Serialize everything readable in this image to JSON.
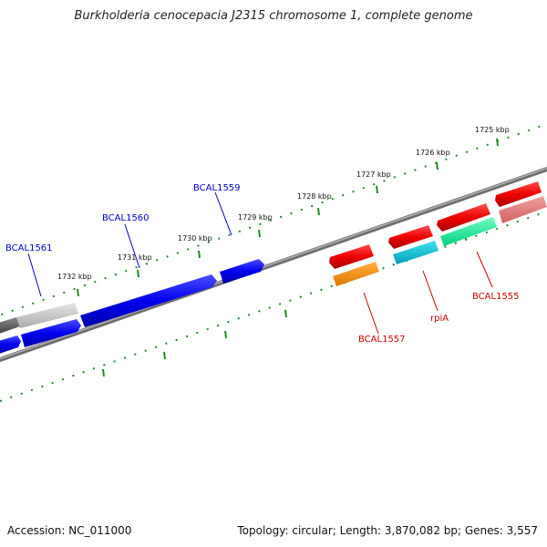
{
  "title": "Burkholderia cenocepacia J2315 chromosome 1, complete genome",
  "footer": {
    "accession": "Accession: NC_011000",
    "summary": "Topology: circular; Length: 3,870,082 bp; Genes: 3,557"
  },
  "colors": {
    "tick": "#228B22",
    "backbone": "#808080",
    "forward_label": "#0000cc",
    "reverse_label": "#cc0000"
  },
  "kbp_ticks": [
    "1725 kbp",
    "1726 kbp",
    "1727 kbp",
    "1728 kbp",
    "1729 kbp",
    "1730 kbp",
    "1731 kbp",
    "1732 kbp"
  ],
  "gene_labels": [
    {
      "name": "BCAL1561",
      "strand": "forward"
    },
    {
      "name": "BCAL1560",
      "strand": "forward"
    },
    {
      "name": "BCAL1559",
      "strand": "forward"
    },
    {
      "name": "BCAL1557",
      "strand": "reverse"
    },
    {
      "name": "rpiA",
      "strand": "reverse"
    },
    {
      "name": "BCAL1555",
      "strand": "reverse"
    }
  ]
}
